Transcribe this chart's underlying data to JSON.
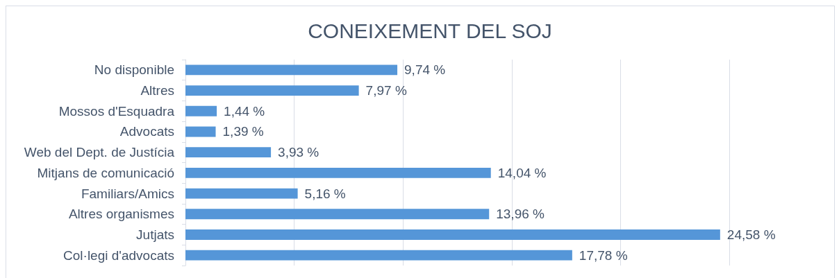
{
  "chart_data": {
    "type": "bar",
    "orientation": "horizontal",
    "title": "CONEIXEMENT DEL SOJ",
    "categories": [
      "No disponible",
      "Altres",
      "Mossos d'Esquadra",
      "Advocats",
      "Web del Dept. de Justícia",
      "Mitjans de comunicació",
      "Familiars/Amics",
      "Altres organismes",
      "Jutjats",
      "Col·legi d'advocats"
    ],
    "values": [
      9.74,
      7.97,
      1.44,
      1.39,
      3.93,
      14.04,
      5.16,
      13.96,
      24.58,
      17.78
    ],
    "value_labels": [
      "9,74 %",
      "7,97 %",
      "1,44 %",
      "1,39 %",
      "3,93 %",
      "14,04 %",
      "5,16 %",
      "13,96 %",
      "24,58 %",
      "17,78 %"
    ],
    "color": "#5596d8",
    "xlim": [
      0,
      25
    ],
    "xticks": [
      {
        "value": 0,
        "label": null
      },
      {
        "value": 5,
        "label": null
      },
      {
        "value": 10,
        "label": null
      },
      {
        "value": 15,
        "label": null
      },
      {
        "value": 20,
        "label": null
      },
      {
        "value": 25,
        "label": null
      }
    ],
    "grid": "x",
    "tick_labels": "y"
  }
}
